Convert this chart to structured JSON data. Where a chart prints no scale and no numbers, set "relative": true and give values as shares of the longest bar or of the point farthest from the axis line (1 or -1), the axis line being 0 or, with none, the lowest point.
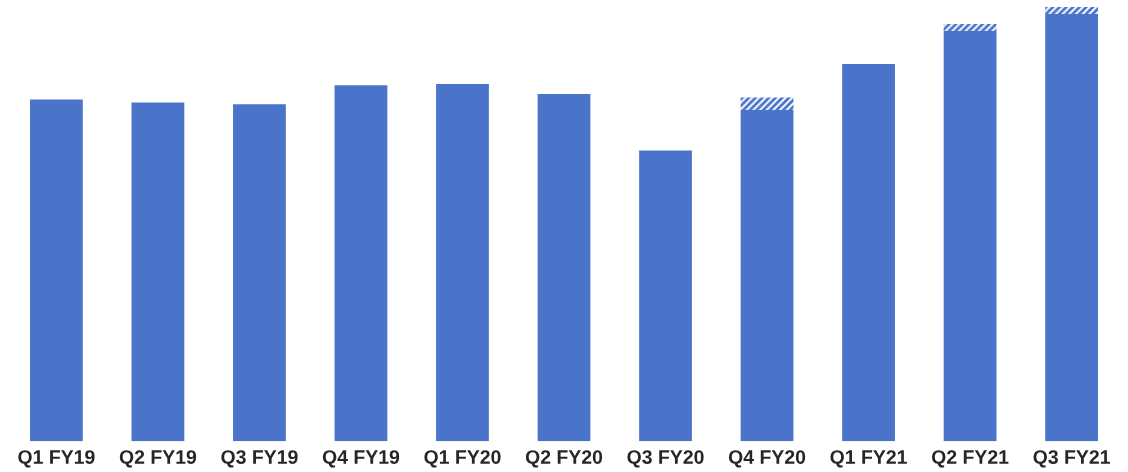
{
  "chart_data": {
    "type": "bar",
    "relative": true,
    "stacked": true,
    "grid": false,
    "legend": false,
    "categories": [
      "Q1 FY19",
      "Q2 FY19",
      "Q3 FY19",
      "Q4 FY19",
      "Q1 FY20",
      "Q2 FY20",
      "Q3 FY20",
      "Q4 FY20",
      "Q1 FY21",
      "Q2 FY21",
      "Q3 FY21"
    ],
    "series": [
      {
        "color": "#4a74c9",
        "values": [
          0.787,
          0.78,
          0.776,
          0.82,
          0.823,
          0.8,
          0.67,
          0.763,
          0.869,
          0.945,
          0.984
        ]
      },
      {
        "color": "#4a74c9",
        "values": [
          null,
          null,
          null,
          null,
          null,
          null,
          null,
          0.029,
          null,
          0.016,
          0.016
        ]
      }
    ]
  }
}
